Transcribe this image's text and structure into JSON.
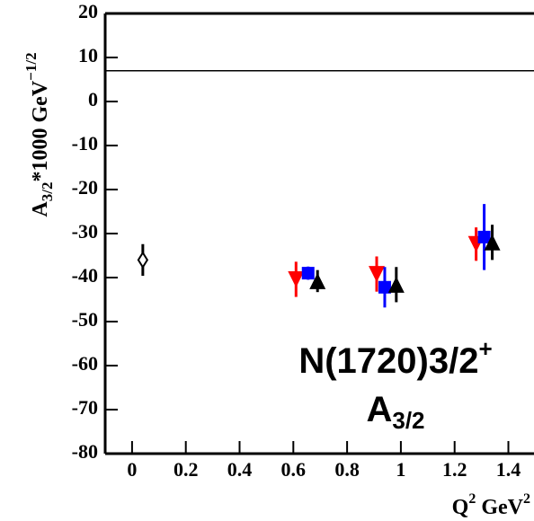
{
  "chart_data": {
    "type": "scatter",
    "y_label": {
      "base": "A",
      "sub": "3/2",
      "mid": "*1000 GeV",
      "sup": "−1/2"
    },
    "x_label": {
      "base": "Q",
      "sup": "2",
      "unit": " GeV",
      "unit_sup": "2"
    },
    "annotations": [
      {
        "text": "N(1720)3/2",
        "sup": "+"
      },
      {
        "text": "A",
        "sub": "3/2"
      }
    ],
    "xlim": [
      -0.1,
      1.5
    ],
    "ylim": [
      -80,
      20
    ],
    "xticks": [
      0,
      0.2,
      0.4,
      0.6,
      0.8,
      1,
      1.2,
      1.4
    ],
    "yticks": [
      -80,
      -70,
      -60,
      -50,
      -40,
      -30,
      -20,
      -10,
      0,
      10,
      20
    ],
    "reference_line": 7,
    "series": [
      {
        "marker": "diamond-open",
        "color": "#000000",
        "x": [
          0.04
        ],
        "values": [
          -36
        ],
        "errors": [
          3.6
        ]
      },
      {
        "marker": "triangle-down",
        "color": "#ff0000",
        "x": [
          0.61,
          0.91,
          1.28
        ],
        "values": [
          -40.4,
          -39.2,
          -32.4
        ],
        "errors": [
          4,
          4,
          3.8
        ]
      },
      {
        "marker": "square",
        "color": "#0000ff",
        "x": [
          0.655,
          0.94,
          1.31
        ],
        "values": [
          -39,
          -42.2,
          -30.8
        ],
        "errors": [
          1.5,
          4.6,
          7.5
        ]
      },
      {
        "marker": "triangle-up",
        "color": "#000000",
        "x": [
          0.69,
          0.983,
          1.34
        ],
        "values": [
          -40.8,
          -41.6,
          -32
        ],
        "errors": [
          2.5,
          4,
          4
        ]
      }
    ]
  }
}
